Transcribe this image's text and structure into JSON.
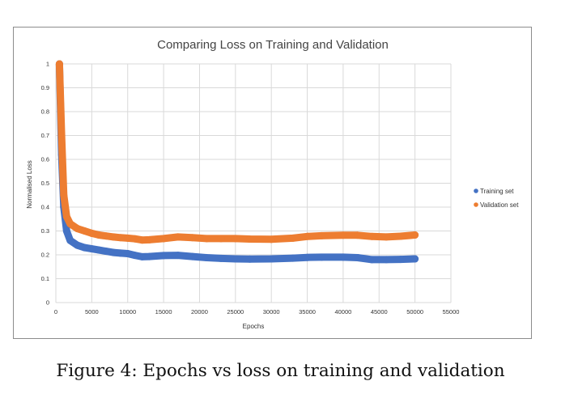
{
  "chart_data": {
    "type": "scatter",
    "title": "Comparing Loss on Training and Validation",
    "xlabel": "Epochs",
    "ylabel": "Normalised Loss",
    "xlim": [
      0,
      55000
    ],
    "ylim": [
      0,
      1
    ],
    "x_ticks": [
      0,
      5000,
      10000,
      15000,
      20000,
      25000,
      30000,
      35000,
      40000,
      45000,
      50000,
      55000
    ],
    "y_ticks": [
      0,
      0.1,
      0.2,
      0.3,
      0.4,
      0.5,
      0.6,
      0.7,
      0.8,
      0.9,
      1
    ],
    "x_tick_labels": [
      "0",
      "5000",
      "10000",
      "15000",
      "20000",
      "25000",
      "30000",
      "35000",
      "40000",
      "45000",
      "50000",
      "55000"
    ],
    "y_tick_labels": [
      "0",
      "0.1",
      "0.2",
      "0.3",
      "0.4",
      "0.5",
      "0.6",
      "0.7",
      "0.8",
      "0.9",
      "1"
    ],
    "grid": true,
    "legend_position": "right",
    "series": [
      {
        "name": "Training set",
        "color": "#4472c4",
        "x": [
          500,
          800,
          1100,
          1500,
          2000,
          3000,
          4000,
          5000,
          6000,
          7000,
          8000,
          9000,
          10000,
          11000,
          12000,
          13000,
          15000,
          17000,
          19000,
          21000,
          23000,
          25000,
          27000,
          30000,
          33000,
          35000,
          37000,
          40000,
          42000,
          44000,
          46000,
          48000,
          50000
        ],
        "y": [
          1.0,
          0.62,
          0.4,
          0.3,
          0.26,
          0.24,
          0.23,
          0.225,
          0.22,
          0.215,
          0.21,
          0.207,
          0.205,
          0.198,
          0.192,
          0.193,
          0.197,
          0.198,
          0.193,
          0.188,
          0.185,
          0.183,
          0.182,
          0.183,
          0.186,
          0.189,
          0.19,
          0.19,
          0.188,
          0.18,
          0.18,
          0.181,
          0.183
        ]
      },
      {
        "name": "Validation set",
        "color": "#ed7d31",
        "x": [
          500,
          800,
          1100,
          1500,
          2000,
          3000,
          4000,
          5000,
          6000,
          7000,
          8000,
          9000,
          10000,
          11000,
          12000,
          13000,
          15000,
          17000,
          19000,
          21000,
          23000,
          25000,
          27000,
          30000,
          33000,
          35000,
          37000,
          40000,
          42000,
          44000,
          46000,
          48000,
          50000
        ],
        "y": [
          1.0,
          0.7,
          0.45,
          0.36,
          0.33,
          0.31,
          0.3,
          0.29,
          0.283,
          0.279,
          0.275,
          0.272,
          0.27,
          0.267,
          0.262,
          0.263,
          0.268,
          0.275,
          0.272,
          0.268,
          0.268,
          0.268,
          0.266,
          0.265,
          0.27,
          0.277,
          0.28,
          0.282,
          0.282,
          0.277,
          0.275,
          0.278,
          0.283
        ]
      }
    ]
  },
  "caption": "Figure 4: Epochs vs loss on training and validation"
}
